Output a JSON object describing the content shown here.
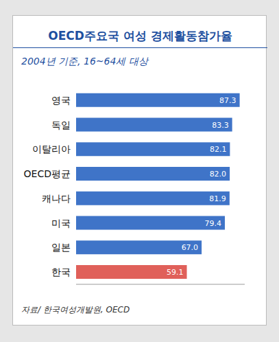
{
  "chart_data": {
    "type": "bar",
    "title": "OECD주요국 여성 경제활동참가율",
    "subtitle": "2004년 기준, 16~64세 대상",
    "source": "자료/ 한국여성개발원, OECD",
    "orientation": "horizontal",
    "categories": [
      "영국",
      "독일",
      "이탈리아",
      "OECD평균",
      "캐나다",
      "미국",
      "일본",
      "한국"
    ],
    "values": [
      87.3,
      83.3,
      82.1,
      82.0,
      81.9,
      79.4,
      67.0,
      59.1
    ],
    "value_labels": [
      "87.3",
      "83.3",
      "82.1",
      "82.0",
      "81.9",
      "79.4",
      "67.0",
      "59.1"
    ],
    "colors": [
      "#3f74c8",
      "#3f74c8",
      "#3f74c8",
      "#3f74c8",
      "#3f74c8",
      "#3f74c8",
      "#3f74c8",
      "#e0605a"
    ],
    "xlim": [
      0,
      90
    ],
    "data_labels": true,
    "tick_labels": false,
    "grid": false
  }
}
